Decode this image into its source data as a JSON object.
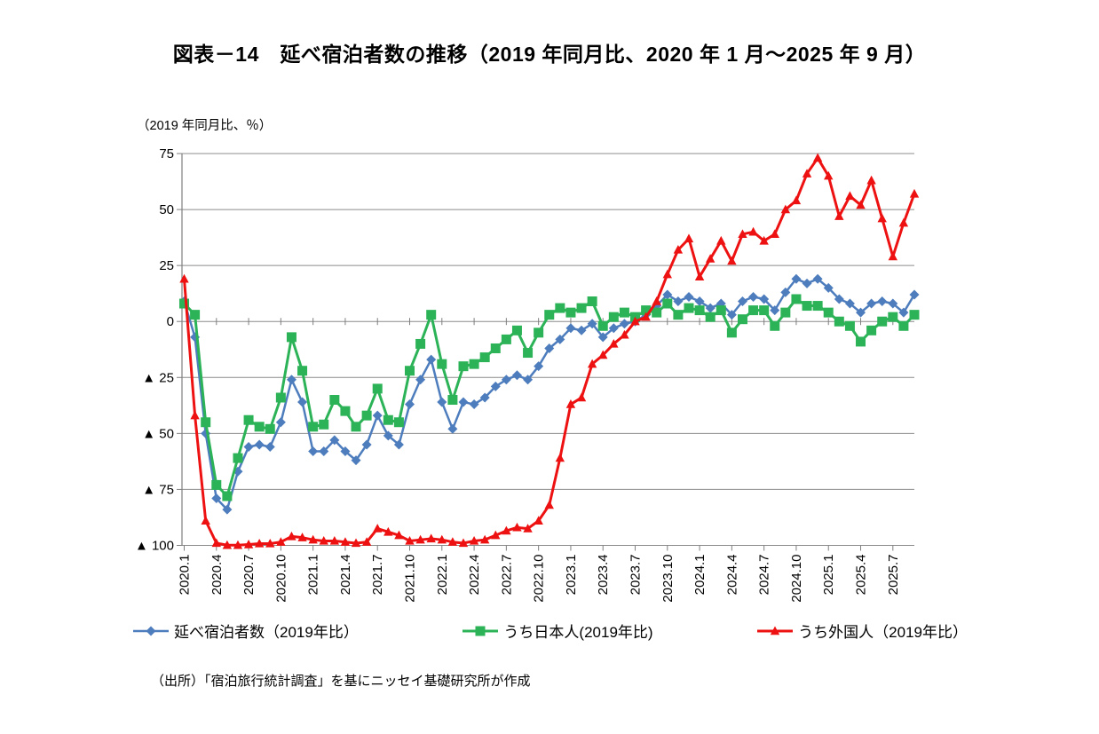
{
  "title": "図表－14　延べ宿泊者数の推移（2019 年同月比、2020 年 1 月～2025 年 9 月）",
  "unit_label": "（2019 年同月比、％）",
  "source": "（出所）「宿泊旅行統計調査」を基にニッセイ基礎研究所が作成",
  "chart_data": {
    "type": "line",
    "title": "図表－14　延べ宿泊者数の推移（2019 年同月比、2020 年 1 月～2025 年 9 月）",
    "ylabel": "（2019 年同月比、％）",
    "ylim": [
      -100,
      75
    ],
    "y_ticks": [
      75,
      50,
      25,
      0,
      -25,
      -50,
      -75,
      -100
    ],
    "y_tick_labels": [
      "75",
      "50",
      "25",
      "0",
      "▲ 25",
      "▲ 50",
      "▲ 75",
      "▲ 100"
    ],
    "grid": true,
    "legend_position": "bottom",
    "x_tick_every": 3,
    "x_categories": [
      "2020.1",
      "2020.2",
      "2020.3",
      "2020.4",
      "2020.5",
      "2020.6",
      "2020.7",
      "2020.8",
      "2020.9",
      "2020.10",
      "2020.11",
      "2020.12",
      "2021.1",
      "2021.2",
      "2021.3",
      "2021.4",
      "2021.5",
      "2021.6",
      "2021.7",
      "2021.8",
      "2021.9",
      "2021.10",
      "2021.11",
      "2021.12",
      "2022.1",
      "2022.2",
      "2022.3",
      "2022.4",
      "2022.5",
      "2022.6",
      "2022.7",
      "2022.8",
      "2022.9",
      "2022.10",
      "2022.11",
      "2022.12",
      "2023.1",
      "2023.2",
      "2023.3",
      "2023.4",
      "2023.5",
      "2023.6",
      "2023.7",
      "2023.8",
      "2023.9",
      "2023.10",
      "2023.11",
      "2023.12",
      "2024.1",
      "2024.2",
      "2024.3",
      "2024.4",
      "2024.5",
      "2024.6",
      "2024.7",
      "2024.8",
      "2024.9",
      "2024.10",
      "2024.11",
      "2024.12",
      "2025.1",
      "2025.2",
      "2025.3",
      "2025.4",
      "2025.5",
      "2025.6",
      "2025.7",
      "2025.8",
      "2025.9"
    ],
    "x_tick_labels": [
      "2020.1",
      "2020.4",
      "2020.7",
      "2020.10",
      "2021.1",
      "2021.4",
      "2021.7",
      "2021.10",
      "2022.1",
      "2022.4",
      "2022.7",
      "2022.10",
      "2023.1",
      "2023.4",
      "2023.7",
      "2023.10",
      "2024.1",
      "2024.4",
      "2024.7",
      "2024.10",
      "2025.1",
      "2025.4",
      "2025.7"
    ],
    "series": [
      {
        "name": "延べ宿泊者数（2019年比）",
        "color": "#4E7DBD",
        "marker": "diamond",
        "values": [
          9,
          -7,
          -50,
          -79,
          -84,
          -67,
          -56,
          -55,
          -56,
          -45,
          -26,
          -36,
          -58,
          -58,
          -53,
          -58,
          -62,
          -55,
          -42,
          -51,
          -55,
          -37,
          -26,
          -17,
          -36,
          -48,
          -36,
          -37,
          -34,
          -29,
          -26,
          -24,
          -26,
          -20,
          -12,
          -8,
          -3,
          -4,
          -1,
          -7,
          -3,
          -1,
          0,
          3,
          7,
          12,
          9,
          11,
          9,
          6,
          8,
          3,
          9,
          11,
          10,
          5,
          13,
          19,
          17,
          19,
          15,
          10,
          8,
          4,
          8,
          9,
          8,
          4,
          12
        ]
      },
      {
        "name": "うち日本人(2019年比)",
        "color": "#2CB357",
        "marker": "square",
        "values": [
          8,
          3,
          -45,
          -73,
          -78,
          -61,
          -44,
          -47,
          -48,
          -34,
          -7,
          -22,
          -47,
          -46,
          -35,
          -40,
          -47,
          -42,
          -30,
          -44,
          -45,
          -22,
          -10,
          3,
          -19,
          -35,
          -20,
          -19,
          -16,
          -12,
          -8,
          -4,
          -14,
          -5,
          3,
          6,
          4,
          6,
          9,
          -2,
          2,
          4,
          2,
          5,
          4,
          8,
          3,
          6,
          5,
          2,
          5,
          -5,
          1,
          5,
          5,
          -2,
          4,
          10,
          7,
          7,
          4,
          0,
          -2,
          -9,
          -4,
          0,
          2,
          -2,
          3
        ]
      },
      {
        "name": "うち外国人（2019年比）",
        "color": "#EE1111",
        "marker": "triangle",
        "values": [
          19,
          -42,
          -89,
          -99,
          -99.9,
          -99.9,
          -99.6,
          -99.2,
          -99.2,
          -98.5,
          -96,
          -96.5,
          -97.5,
          -98,
          -98,
          -98.5,
          -99,
          -98.5,
          -92.5,
          -94,
          -95.5,
          -98,
          -97.5,
          -97,
          -97.5,
          -98.5,
          -99,
          -98,
          -97.5,
          -95.5,
          -93.5,
          -92,
          -92.5,
          -89,
          -82,
          -61,
          -37,
          -34,
          -19,
          -15,
          -10,
          -6,
          0,
          2,
          9,
          21,
          32,
          37,
          20,
          28,
          36,
          27,
          39,
          40,
          36,
          39,
          50,
          54,
          66,
          73,
          65,
          47,
          56,
          52,
          63,
          46,
          29,
          44,
          57
        ]
      }
    ]
  }
}
